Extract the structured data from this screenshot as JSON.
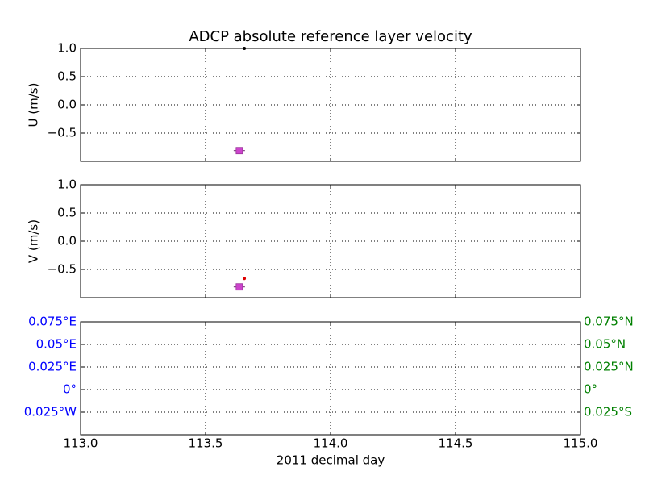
{
  "chart_data": [
    {
      "type": "scatter",
      "title": "ADCP absolute reference layer velocity",
      "ylabel": "U (m/s)",
      "xlim": [
        113,
        115
      ],
      "xticks": [
        113,
        113.5,
        114,
        114.5,
        115
      ],
      "show_xtick_labels": false,
      "ylim": [
        -1,
        1
      ],
      "yticks": [
        {
          "value": -0.5,
          "label": "−0.5"
        },
        {
          "value": 0,
          "label": "0.0"
        },
        0.5,
        {
          "value": 1,
          "label": "1.0"
        }
      ],
      "grid": true,
      "series": [
        {
          "marker": "square",
          "color": "#cc44cc",
          "x": [
            113.635
          ],
          "values": [
            -0.81
          ]
        },
        {
          "marker": "dot",
          "color": "#000000",
          "x": [
            113.655
          ],
          "values": [
            1.0
          ]
        }
      ]
    },
    {
      "type": "scatter",
      "ylabel": "V (m/s)",
      "xlim": [
        113,
        115
      ],
      "xticks": [
        113,
        113.5,
        114,
        114.5,
        115
      ],
      "show_xtick_labels": false,
      "ylim": [
        -1,
        1
      ],
      "yticks": [
        {
          "value": -0.5,
          "label": "−0.5"
        },
        {
          "value": 0,
          "label": "0.0"
        },
        0.5,
        {
          "value": 1,
          "label": "1.0"
        }
      ],
      "grid": true,
      "series": [
        {
          "marker": "square",
          "color": "#cc44cc",
          "x": [
            113.635
          ],
          "values": [
            -0.81
          ]
        },
        {
          "marker": "dot",
          "color": "#dd0000",
          "x": [
            113.655
          ],
          "values": [
            -0.66
          ]
        }
      ]
    },
    {
      "type": "scatter",
      "xlabel": "2011 decimal day",
      "xlim": [
        113,
        115
      ],
      "xticks": [
        {
          "value": 113,
          "label": "113.0"
        },
        113.5,
        {
          "value": 114,
          "label": "114.0"
        },
        114.5,
        {
          "value": 115,
          "label": "115.0"
        }
      ],
      "show_xtick_labels": true,
      "ylim": [
        -0.05,
        0.075
      ],
      "ytick_color": "#0000ff",
      "yticks": [
        {
          "value": -0.025,
          "label": "0.025°W"
        },
        {
          "value": 0,
          "label": "0°"
        },
        {
          "value": 0.025,
          "label": "0.025°E"
        },
        {
          "value": 0.05,
          "label": "0.05°E"
        },
        {
          "value": 0.075,
          "label": "0.075°E"
        }
      ],
      "y2lim": [
        -0.05,
        0.075
      ],
      "y2tick_color": "#008000",
      "y2ticks": [
        {
          "value": -0.025,
          "label": "0.025°S"
        },
        {
          "value": 0,
          "label": "0°"
        },
        {
          "value": 0.025,
          "label": "0.025°N"
        },
        {
          "value": 0.05,
          "label": "0.05°N"
        },
        {
          "value": 0.075,
          "label": "0.075°N"
        }
      ],
      "grid": true,
      "series": []
    }
  ]
}
